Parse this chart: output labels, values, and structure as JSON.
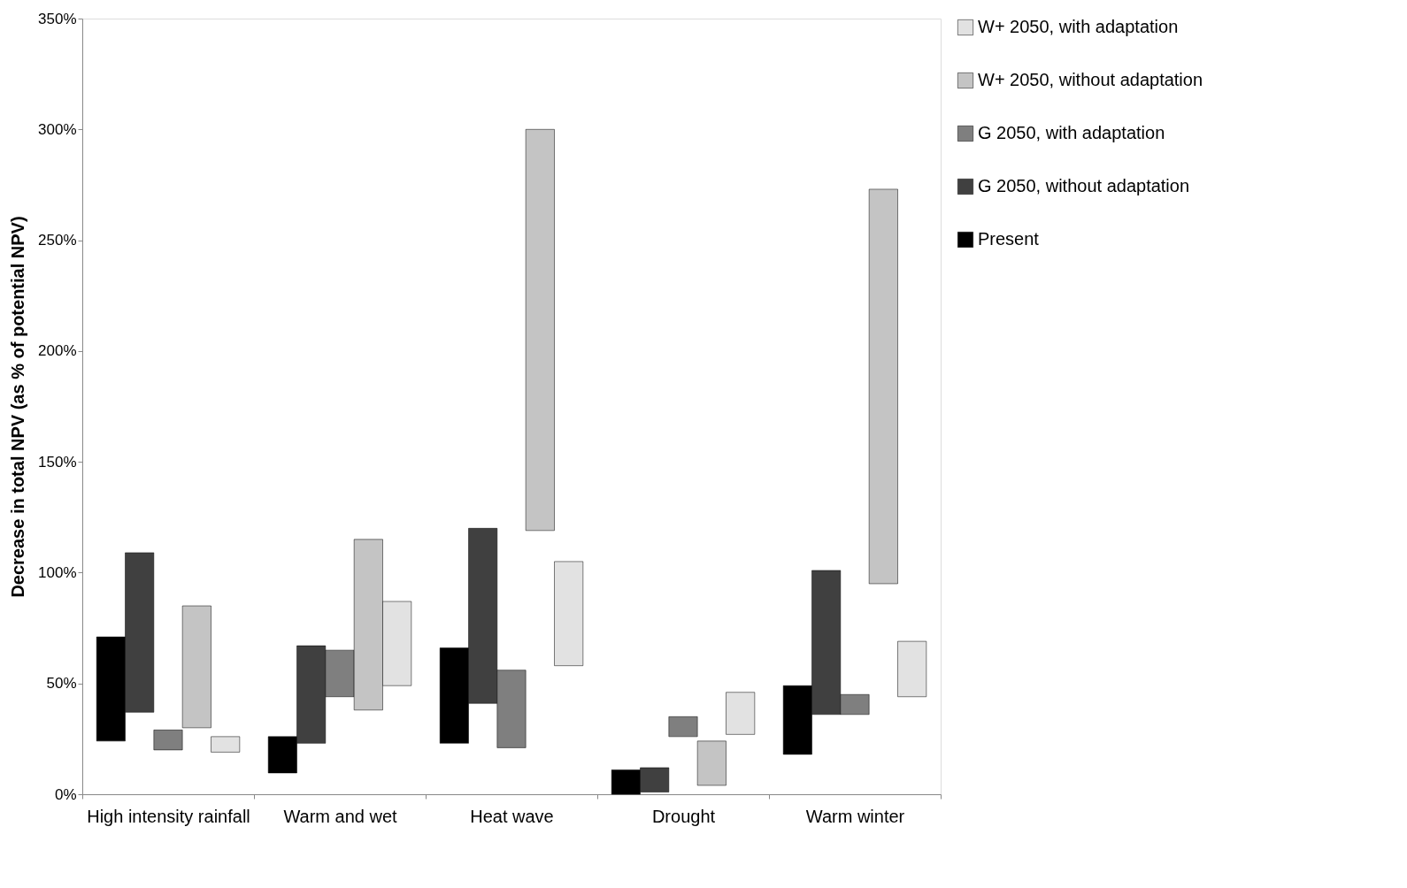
{
  "chart_data": {
    "type": "bar",
    "ylabel": "Decrease in total NPV (as % of potential NPV)",
    "categories": [
      "High intensity rainfall",
      "Warm and wet",
      "Heat wave",
      "Drought",
      "Warm winter"
    ],
    "series": [
      {
        "name": "Present",
        "color": "#000000",
        "base": [
          24,
          9.6,
          23,
          0,
          18
        ],
        "values": [
          47,
          16.4,
          43,
          11,
          31
        ]
      },
      {
        "name": "G 2050, without adaptation",
        "color": "#404040",
        "base": [
          37,
          23,
          41,
          1,
          36
        ],
        "values": [
          72,
          44,
          79,
          11,
          65
        ]
      },
      {
        "name": "G 2050, with adaptation",
        "color": "#7f7f7f",
        "base": [
          20,
          44,
          21,
          26,
          36
        ],
        "values": [
          9,
          21,
          35,
          9,
          9
        ]
      },
      {
        "name": "W+ 2050, without adaptation",
        "color": "#c4c4c4",
        "base": [
          30,
          38,
          119,
          4,
          95
        ],
        "values": [
          55,
          77,
          181,
          20,
          178
        ]
      },
      {
        "name": "W+ 2050, with adaptation",
        "color": "#e2e2e2",
        "base": [
          19,
          49,
          58,
          27,
          44
        ],
        "values": [
          7,
          38,
          47,
          19,
          25
        ]
      }
    ],
    "ylim": [
      0,
      350
    ],
    "yticks": [
      {
        "value": 0,
        "label": "0%"
      },
      {
        "value": 50,
        "label": "50%"
      },
      {
        "value": 100,
        "label": "100%"
      },
      {
        "value": 150,
        "label": "150%"
      },
      {
        "value": 200,
        "label": "200%"
      },
      {
        "value": 250,
        "label": "250%"
      },
      {
        "value": 300,
        "label": "300%"
      },
      {
        "value": 350,
        "label": "350%"
      }
    ],
    "grid": false,
    "legend": "right"
  }
}
